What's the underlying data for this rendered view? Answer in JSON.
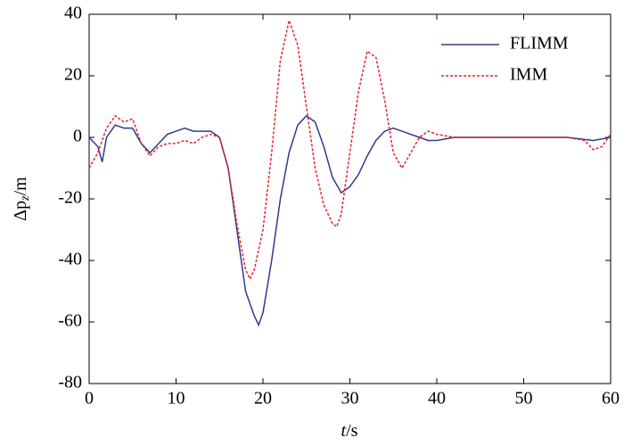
{
  "chart_data": {
    "type": "line",
    "xlabel": [
      "t",
      "/s"
    ],
    "ylabel": [
      "Δp",
      "z",
      "/m"
    ],
    "xlim": [
      0,
      60
    ],
    "ylim": [
      -80,
      40
    ],
    "xticks": [
      0,
      10,
      20,
      30,
      40,
      50,
      60
    ],
    "yticks": [
      -80,
      -60,
      -40,
      -20,
      0,
      20,
      40
    ],
    "legend": "upper right",
    "series": [
      {
        "name": "FLIMM",
        "color": "#2e3a8c",
        "dash": "solid",
        "x": [
          0,
          1,
          1.5,
          2,
          3,
          4,
          5,
          6,
          7,
          8,
          9,
          10,
          11,
          12,
          13,
          14,
          15,
          16,
          17,
          18,
          19,
          19.5,
          20,
          21,
          22,
          23,
          24,
          25,
          26,
          27,
          28,
          29,
          30,
          31,
          32,
          33,
          34,
          35,
          36,
          37,
          38,
          39,
          40,
          42,
          45,
          50,
          55,
          58,
          60
        ],
        "values": [
          0,
          -3,
          -8,
          0,
          4,
          3,
          3,
          -2,
          -5,
          -2,
          1,
          2,
          3,
          2,
          2,
          2,
          0,
          -10,
          -30,
          -50,
          -58,
          -61,
          -57,
          -40,
          -20,
          -5,
          4,
          7,
          5,
          -3,
          -13,
          -18,
          -16,
          -12,
          -6,
          -1,
          2,
          3,
          2,
          1,
          0,
          -1,
          -1,
          0,
          0,
          0,
          0,
          -1,
          0
        ]
      },
      {
        "name": "IMM",
        "color": "#e8202a",
        "dash": "dotted",
        "x": [
          0,
          1,
          2,
          3,
          4,
          5,
          6,
          7,
          8,
          9,
          10,
          11,
          12,
          13,
          14,
          15,
          16,
          17,
          18,
          18.5,
          19,
          20,
          21,
          22,
          23,
          24,
          25,
          26,
          27,
          28,
          28.5,
          29,
          30,
          31,
          32,
          33,
          34,
          35,
          36,
          37,
          38,
          39,
          40,
          42,
          50,
          55,
          57,
          58,
          59,
          60
        ],
        "values": [
          -10,
          -5,
          3,
          7,
          5,
          6,
          -2,
          -6,
          -3,
          -2,
          -2,
          -1,
          -2,
          0,
          1,
          0,
          -10,
          -28,
          -43,
          -46,
          -43,
          -30,
          -5,
          25,
          38,
          30,
          10,
          -10,
          -22,
          -28,
          -29,
          -25,
          -5,
          15,
          28,
          26,
          12,
          -5,
          -10,
          -5,
          0,
          2,
          1,
          0,
          0,
          0,
          -1,
          -4,
          -3,
          1
        ]
      }
    ]
  }
}
